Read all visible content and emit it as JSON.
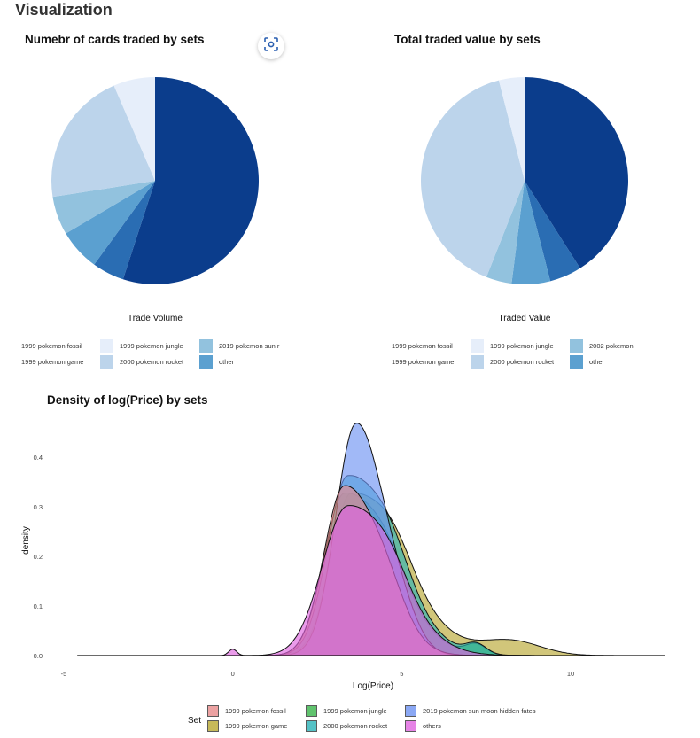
{
  "page": {
    "title": "Visualization"
  },
  "focus_icon": "focus-scan-icon",
  "chart_data": [
    {
      "type": "pie",
      "title": "Numebr of cards traded by sets",
      "xlabel": "Trade Volume",
      "slices": [
        {
          "name": "other",
          "value": 55.0,
          "color": "#0b3d8c"
        },
        {
          "name": "2019 pokemon sun r",
          "value": 5.0,
          "color": "#2a6db3"
        },
        {
          "name": "2000 pokemon rocket",
          "value": 6.5,
          "color": "#5ba0d0"
        },
        {
          "name": "1999 pokemon jungle",
          "value": 6.0,
          "color": "#92c2de"
        },
        {
          "name": "1999 pokemon game",
          "value": 21.0,
          "color": "#bcd4eb"
        },
        {
          "name": "1999 pokemon fossil",
          "value": 6.5,
          "color": "#e6eefa"
        }
      ],
      "legend": [
        {
          "label": "1999 pokemon fossil",
          "color": "#e6eefa"
        },
        {
          "label": "1999 pokemon game",
          "color": "#bcd4eb"
        },
        {
          "label": "1999 pokemon jungle",
          "color": "#92c2de"
        },
        {
          "label": "2000 pokemon rocket",
          "color": "#5ba0d0"
        },
        {
          "label": "2019 pokemon sun r",
          "color": "#2a6db3"
        },
        {
          "label": "other",
          "color": "#0b3d8c"
        }
      ],
      "legend_position": "bottom"
    },
    {
      "type": "pie",
      "title": "Total traded value by sets",
      "xlabel": "Traded Value",
      "slices": [
        {
          "name": "other",
          "value": 41.0,
          "color": "#0b3d8c"
        },
        {
          "name": "2002 pokemon",
          "value": 5.0,
          "color": "#2a6db3"
        },
        {
          "name": "2000 pokemon rocket",
          "value": 6.0,
          "color": "#5ba0d0"
        },
        {
          "name": "1999 pokemon jungle",
          "value": 4.0,
          "color": "#92c2de"
        },
        {
          "name": "1999 pokemon game",
          "value": 40.0,
          "color": "#bcd4eb"
        },
        {
          "name": "1999 pokemon fossil",
          "value": 4.0,
          "color": "#e6eefa"
        }
      ],
      "legend": [
        {
          "label": "1999 pokemon fossil",
          "color": "#e6eefa"
        },
        {
          "label": "1999 pokemon game",
          "color": "#bcd4eb"
        },
        {
          "label": "1999 pokemon jungle",
          "color": "#92c2de"
        },
        {
          "label": "2000 pokemon rocket",
          "color": "#5ba0d0"
        },
        {
          "label": "2002 pokemon",
          "color": "#2a6db3"
        },
        {
          "label": "other",
          "color": "#0b3d8c"
        }
      ],
      "legend_position": "bottom"
    },
    {
      "type": "area",
      "title": "Density of log(Price) by sets",
      "xlabel": "Log(Price)",
      "ylabel": "density",
      "xlim": [
        -5,
        13
      ],
      "ylim": [
        0,
        0.47
      ],
      "xticks": [
        "-5",
        "0",
        "5",
        "10"
      ],
      "xtick_values": [
        -5,
        0,
        5,
        10
      ],
      "yticks": [
        "0.0",
        "0.1",
        "0.2",
        "0.3",
        "0.4"
      ],
      "ytick_values": [
        0,
        0.1,
        0.2,
        0.3,
        0.4
      ],
      "grid": false,
      "legend_title": "Set",
      "legend_position": "bottom",
      "series": [
        {
          "name": "1999 pokemon game",
          "color": "#b8a832",
          "peak": 0.325,
          "center": 3.5,
          "sigma_left": 0.6,
          "sigma_right": 1.5,
          "tail_amp": 0.03,
          "tail_center": 8.2,
          "tail_sigma": 0.9,
          "start": 0.5,
          "end": 11.8
        },
        {
          "name": "1999 pokemon jungle",
          "color": "#39b54a",
          "peak": 0.325,
          "center": 3.3,
          "sigma_left": 0.6,
          "sigma_right": 1.35,
          "tail_amp": 0.02,
          "tail_center": 7.2,
          "tail_sigma": 0.3,
          "start": 0.5,
          "end": 9.6
        },
        {
          "name": "2000 pokemon rocket",
          "color": "#2bb3b8",
          "peak": 0.36,
          "center": 3.4,
          "sigma_left": 0.6,
          "sigma_right": 1.35,
          "tail_amp": 0.02,
          "tail_center": 7.2,
          "tail_sigma": 0.3,
          "start": 0.5,
          "end": 9.6
        },
        {
          "name": "2019 pokemon sun moon hidden fates",
          "color": "#6f93f2",
          "peak": 0.465,
          "center": 3.65,
          "sigma_left": 0.6,
          "sigma_right": 0.8,
          "tail_amp": 0.0,
          "tail_center": 6.0,
          "tail_sigma": 0.5,
          "start": 0.5,
          "end": 8.0
        },
        {
          "name": "1999 pokemon fossil",
          "color": "#e88b8b",
          "peak": 0.34,
          "center": 3.3,
          "sigma_left": 0.6,
          "sigma_right": 1.05,
          "tail_amp": 0.0,
          "tail_center": 6.0,
          "tail_sigma": 0.5,
          "start": 0.5,
          "end": 8.5
        },
        {
          "name": "others",
          "color": "#e066e0",
          "peak": 0.3,
          "center": 3.4,
          "sigma_left": 0.75,
          "sigma_right": 1.35,
          "tail_amp": 0.0,
          "tail_center": 6.0,
          "tail_sigma": 0.5,
          "start": -4.6,
          "end": 12.8,
          "bump_amp": 0.013,
          "bump_center": 0.0,
          "bump_sigma": 0.12
        }
      ],
      "legend": [
        {
          "label": "1999 pokemon fossil",
          "color": "#e88b8b"
        },
        {
          "label": "1999 pokemon game",
          "color": "#b8a832"
        },
        {
          "label": "1999 pokemon jungle",
          "color": "#39b54a"
        },
        {
          "label": "2000 pokemon rocket",
          "color": "#2bb3b8"
        },
        {
          "label": "2019 pokemon sun moon hidden fates",
          "color": "#6f93f2"
        },
        {
          "label": "others",
          "color": "#e066e0"
        }
      ]
    }
  ]
}
